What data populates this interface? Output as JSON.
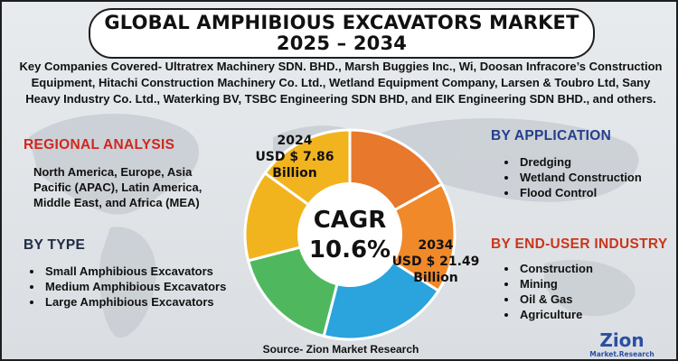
{
  "title": {
    "line1": "GLOBAL AMPHIBIOUS EXCAVATORS MARKET",
    "line2": "2025 – 2034"
  },
  "companies": "Key Companies Covered- Ultratrex Machinery SDN. BHD., Marsh Buggies Inc., Wi, Doosan Infracore’s Construction Equipment, Hitachi Construction Machinery Co. Ltd., Wetland Equipment Company, Larsen & Toubro Ltd, Sany Heavy Industry Co. Ltd., Waterking BV, TSBC Engineering SDN BHD, and EIK Engineering SDN BHD., and others.",
  "regional": {
    "title": "REGIONAL ANALYSIS",
    "text": "North America, Europe, Asia Pacific (APAC), Latin America, Middle East, and Africa (MEA)"
  },
  "by_type": {
    "title": "BY TYPE",
    "items": [
      "Small Amphibious Excavators",
      "Medium Amphibious Excavators",
      "Large Amphibious Excavators"
    ]
  },
  "by_application": {
    "title": "BY APPLICATION",
    "items": [
      "Dredging",
      "Wetland Construction",
      "Flood Control"
    ]
  },
  "by_end_user": {
    "title": "BY END-USER INDUSTRY",
    "items": [
      "Construction",
      "Mining",
      "Oil & Gas",
      "Agriculture"
    ]
  },
  "chart_data": {
    "type": "pie",
    "variant": "donut",
    "values": [
      17,
      17,
      20,
      17,
      14,
      15
    ],
    "colors": [
      "#e8782c",
      "#f0892a",
      "#2ba3dc",
      "#4fb85e",
      "#f2b41e",
      "#f2b41e"
    ],
    "center": {
      "line1": "CAGR",
      "line2": "10.6%"
    },
    "annotations": [
      {
        "year": "2024",
        "value": "USD $ 7.86",
        "unit": "Billion"
      },
      {
        "year": "2034",
        "value": "USD $ 21.49",
        "unit": "Billion"
      }
    ]
  },
  "source": "Source- Zion Market Research",
  "logo": {
    "name": "Zion",
    "sub": "Market.Research"
  },
  "colors": {
    "red_heading": "#d0271f",
    "blue_heading": "#243e8c",
    "dark_heading": "#1f2a44",
    "orange_heading": "#c9361b"
  }
}
